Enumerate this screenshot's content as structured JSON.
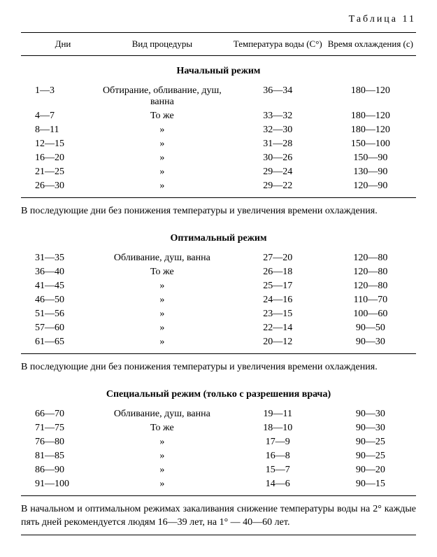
{
  "table_label": "Таблица 11",
  "headers": {
    "days": "Дни",
    "procedure": "Вид процедуры",
    "temp": "Температура воды (С°)",
    "time": "Время охлаждения (с)"
  },
  "sections": [
    {
      "title": "Начальный режим",
      "rows": [
        {
          "days": "1—3",
          "proc": "Обтирание, обливание, душ, ванна",
          "temp": "36—34",
          "time": "180—120"
        },
        {
          "days": "4—7",
          "proc": "То же",
          "temp": "33—32",
          "time": "180—120"
        },
        {
          "days": "8—11",
          "proc": "»",
          "temp": "32—30",
          "time": "180—120"
        },
        {
          "days": "12—15",
          "proc": "»",
          "temp": "31—28",
          "time": "150—100"
        },
        {
          "days": "16—20",
          "proc": "»",
          "temp": "30—26",
          "time": "150—90"
        },
        {
          "days": "21—25",
          "proc": "»",
          "temp": "29—24",
          "time": "130—90"
        },
        {
          "days": "26—30",
          "proc": "»",
          "temp": "29—22",
          "time": "120—90"
        }
      ],
      "note": "В последующие дни без понижения температуры и увеличения времени охлаждения."
    },
    {
      "title": "Оптимальный режим",
      "rows": [
        {
          "days": "31—35",
          "proc": "Обливание, душ, ванна",
          "temp": "27—20",
          "time": "120—80"
        },
        {
          "days": "36—40",
          "proc": "То же",
          "temp": "26—18",
          "time": "120—80"
        },
        {
          "days": "41—45",
          "proc": "»",
          "temp": "25—17",
          "time": "120—80"
        },
        {
          "days": "46—50",
          "proc": "»",
          "temp": "24—16",
          "time": "110—70"
        },
        {
          "days": "51—56",
          "proc": "»",
          "temp": "23—15",
          "time": "100—60"
        },
        {
          "days": "57—60",
          "proc": "»",
          "temp": "22—14",
          "time": "90—50"
        },
        {
          "days": "61—65",
          "proc": "»",
          "temp": "20—12",
          "time": "90—30"
        }
      ],
      "note": "В последующие дни без понижения температуры и увеличения времени охлаждения."
    },
    {
      "title": "Специальный режим (только с разрешения врача)",
      "rows": [
        {
          "days": "66—70",
          "proc": "Обливание, душ, ванна",
          "temp": "19—11",
          "time": "90—30"
        },
        {
          "days": "71—75",
          "proc": "То же",
          "temp": "18—10",
          "time": "90—30"
        },
        {
          "days": "76—80",
          "proc": "»",
          "temp": "17—9",
          "time": "90—25"
        },
        {
          "days": "81—85",
          "proc": "»",
          "temp": "16—8",
          "time": "90—25"
        },
        {
          "days": "86—90",
          "proc": "»",
          "temp": "15—7",
          "time": "90—20"
        },
        {
          "days": "91—100",
          "proc": "»",
          "temp": "14—6",
          "time": "90—15"
        }
      ],
      "note": "В начальном и оптимальном режимах закаливания снижение температуры воды на 2° каждые пять дней рекомендуется людям 16—39 лет, на 1° — 40—60 лет."
    }
  ]
}
